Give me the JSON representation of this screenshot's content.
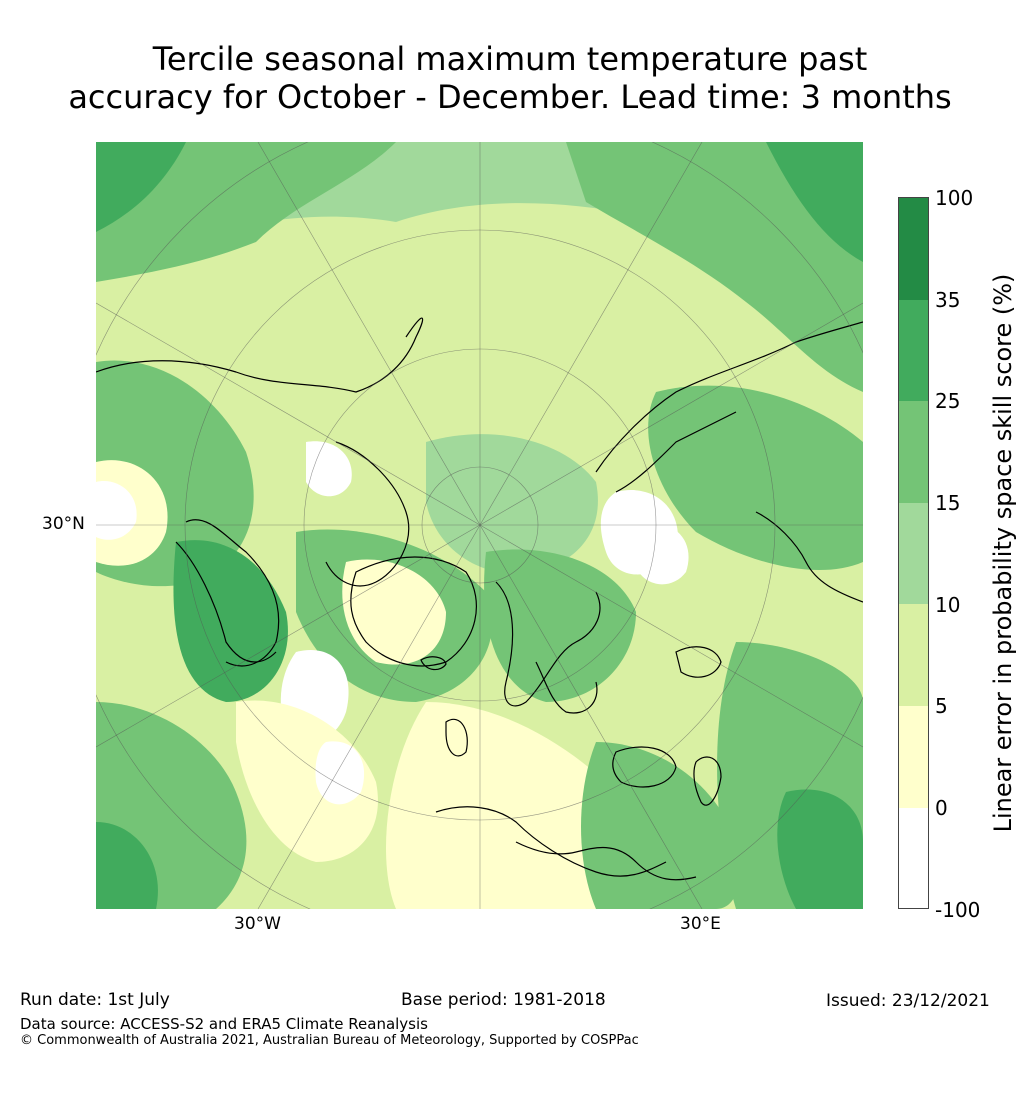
{
  "title": {
    "line1": "Tercile seasonal maximum temperature past",
    "line2": "accuracy for October - December. Lead time: 3 months"
  },
  "map": {
    "lat_label": "30°N",
    "lon_labels": [
      "30°W",
      "30°E"
    ]
  },
  "colorbar": {
    "label": "Linear error in probability space skill score (%)",
    "ticks": [
      "100",
      "35",
      "25",
      "15",
      "10",
      "5",
      "0",
      "-100"
    ],
    "bins": [
      {
        "range": "35 to 100",
        "color": "#238b45"
      },
      {
        "range": "25 to 35",
        "color": "#41ab5d"
      },
      {
        "range": "15 to 25",
        "color": "#74c476"
      },
      {
        "range": "10 to 15",
        "color": "#a1d99b"
      },
      {
        "range": "5 to 10",
        "color": "#d9f0a3"
      },
      {
        "range": "0 to 5",
        "color": "#ffffcc"
      },
      {
        "range": "-100 to 0",
        "color": "#ffffff"
      }
    ]
  },
  "footer": {
    "run_date": "Run date: 1st July",
    "base_period": "Base period: 1981-2018",
    "issued": "Issued: 23/12/2021",
    "data_source": "Data source: ACCESS-S2 and ERA5 Climate Reanalysis",
    "copyright": "© Commonwealth of Australia 2021, Australian Bureau of Meteorology, Supported by COSPPac"
  }
}
